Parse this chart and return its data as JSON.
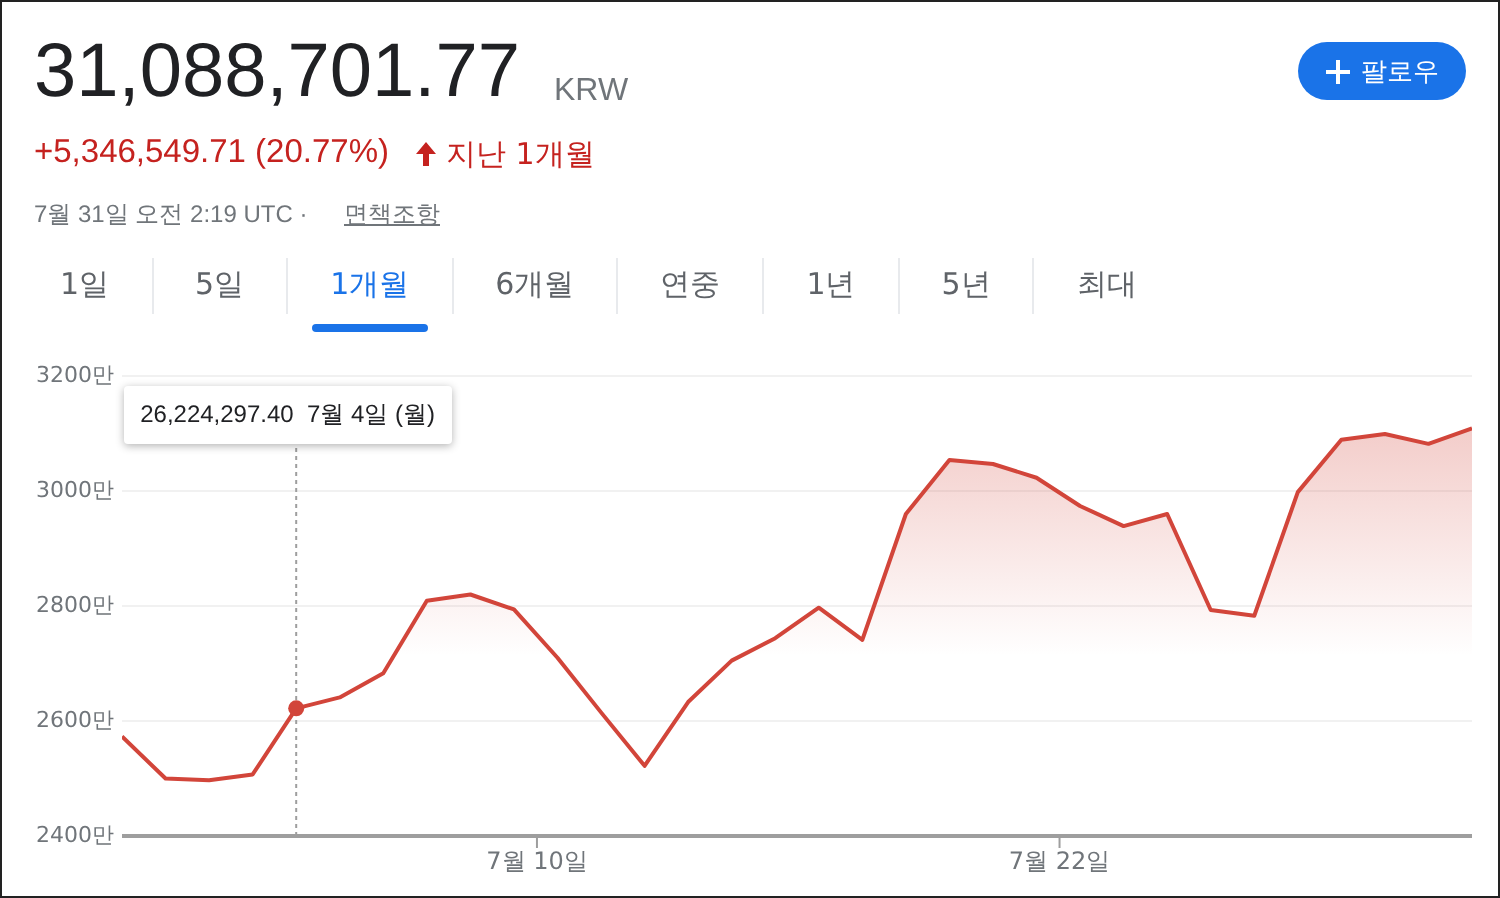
{
  "chart_data": {
    "type": "area",
    "title": "31,088,701.77",
    "annotations": [
      "KRW",
      "+5,346,549.71 (20.77%)",
      "지난 1개월",
      "7월 31일 오전 2:19 UTC ·",
      "면책조항",
      "팔로우",
      "1일",
      "5일",
      "1개월",
      "6개월",
      "연중",
      "1년",
      "5년",
      "최대",
      "26,224,297.40  7월 4일 (월)"
    ],
    "x": [
      "--06-30T11:19",
      "--07-01T11:19",
      "--07-02T11:19",
      "--07-03T11:19",
      "--07-04T11:19",
      "--07-05T11:19",
      "--07-06T11:19",
      "--07-07T11:19",
      "--07-08T11:19",
      "--07-09T11:19",
      "--07-10T11:19",
      "--07-11T11:19",
      "--07-12T11:19",
      "--07-13T11:19",
      "--07-14T11:19",
      "--07-15T11:19",
      "--07-16T11:19",
      "--07-17T11:19",
      "--07-18T11:19",
      "--07-19T11:19",
      "--07-20T11:19",
      "--07-21T11:19",
      "--07-22T11:19",
      "--07-23T11:19",
      "--07-24T11:19",
      "--07-25T11:19",
      "--07-26T11:19",
      "--07-27T11:19",
      "--07-28T11:19",
      "--07-29T11:19",
      "--07-30T11:19",
      "--07-31T11:19"
    ],
    "series": [
      {
        "color": "#d2453a",
        "values": [
          2573,
          2500,
          2497,
          2507,
          2622,
          2641,
          2683,
          2809,
          2820,
          2794,
          2710,
          2615,
          2522,
          2633,
          2705,
          2744,
          2797,
          2741,
          2960,
          3054,
          3047,
          3023,
          2974,
          2939,
          2960,
          2793,
          2783,
          2998,
          3089,
          3099,
          3082,
          3109
        ]
      }
    ],
    "xlim": [
      "--06-30T11:19",
      "--07-31T11:19"
    ],
    "xticks": [
      {
        "value": "--07-10",
        "label": "7월 10일"
      },
      {
        "value": "--07-22",
        "label": "7월 22일"
      }
    ],
    "ylim": [
      2400,
      3200
    ],
    "yticks": [
      {
        "value": 2400,
        "label": "2400만"
      },
      {
        "value": 2600,
        "label": "2600만"
      },
      {
        "value": 2800,
        "label": "2800만"
      },
      {
        "value": 3000,
        "label": "3000만"
      },
      {
        "value": 3200,
        "label": "3200만"
      }
    ],
    "ref_lines": [
      {
        "axis": "x",
        "value": "--07-04T11:19",
        "label": null,
        "line_style": "dotted",
        "color": "#9e9e9e"
      }
    ],
    "grid": "y",
    "legend": false,
    "marker": "none",
    "line_style": "solid"
  }
}
